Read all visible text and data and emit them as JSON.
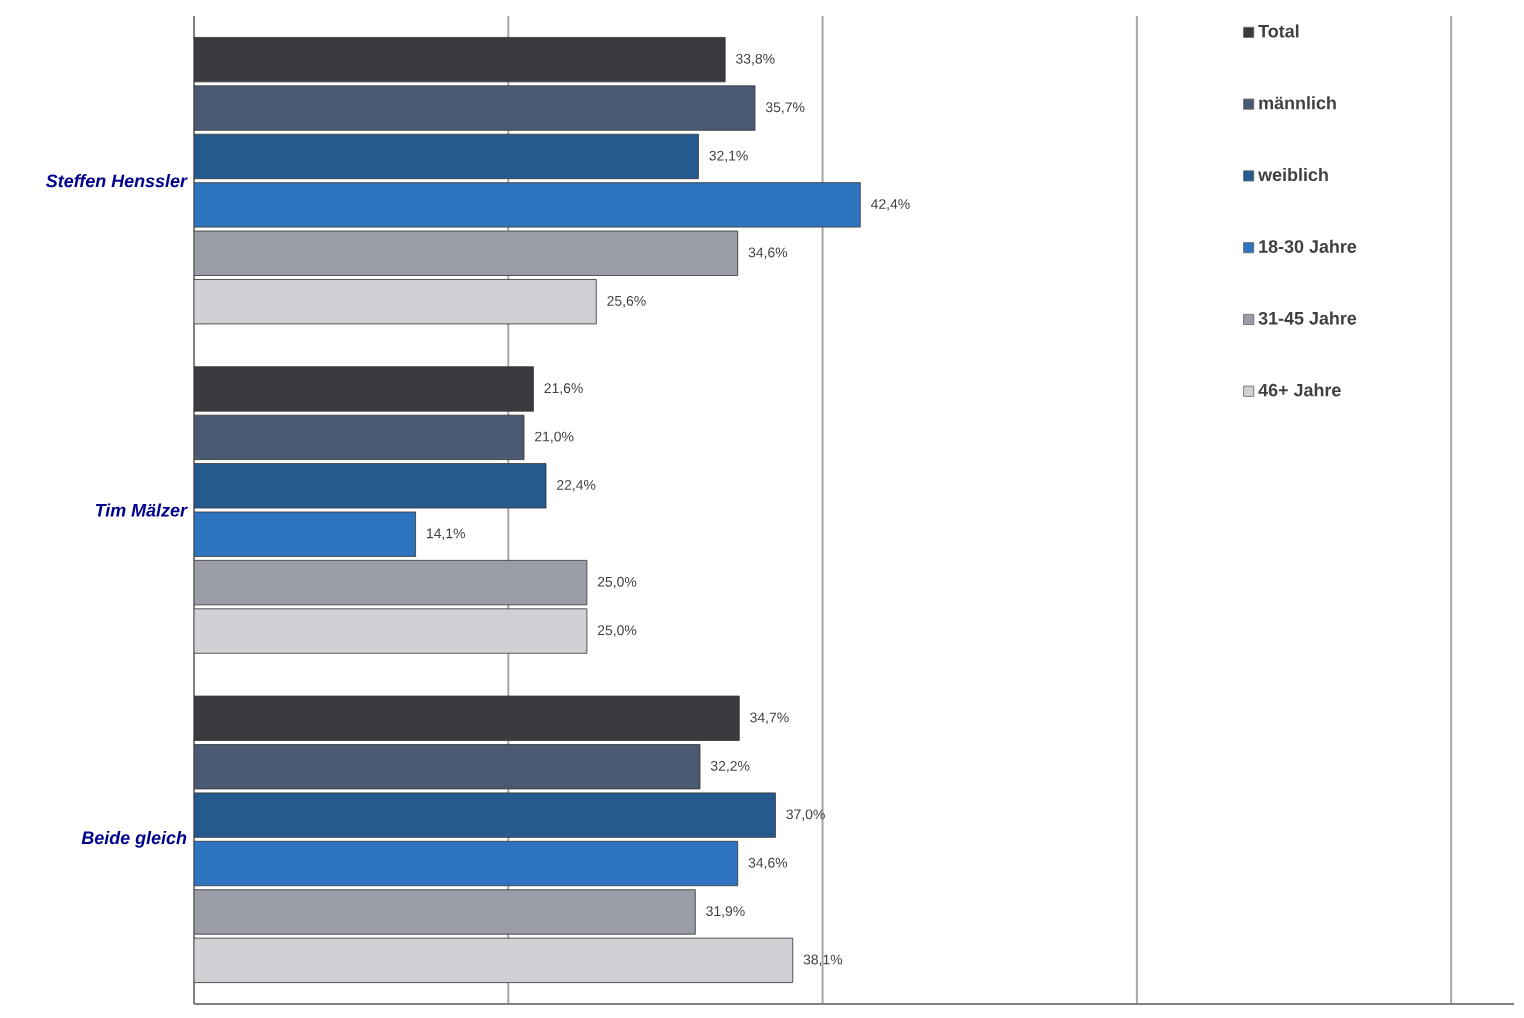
{
  "chart_data": {
    "type": "bar",
    "orientation": "horizontal",
    "categories": [
      "Steffen Henssler",
      "Tim Mälzer",
      "Beide gleich"
    ],
    "series": [
      {
        "name": "Total",
        "color": "#3a3b3f",
        "values": [
          33.8,
          21.6,
          34.7
        ],
        "value_labels": [
          "33,8%",
          "21,6%",
          "34,7%"
        ]
      },
      {
        "name": "männlich",
        "color": "#4a5a72",
        "values": [
          35.7,
          21.0,
          32.2
        ],
        "value_labels": [
          "35,7%",
          "21,0%",
          "32,2%"
        ]
      },
      {
        "name": "weiblich",
        "color": "#245a8e",
        "values": [
          32.1,
          22.4,
          37.0
        ],
        "value_labels": [
          "32,1%",
          "22,4%",
          "37,0%"
        ]
      },
      {
        "name": "18-30 Jahre",
        "color": "#2f74bf",
        "values": [
          42.4,
          14.1,
          34.6
        ],
        "value_labels": [
          "42,4%",
          "14,1%",
          "34,6%"
        ]
      },
      {
        "name": "31-45 Jahre",
        "color": "#9a9ca6",
        "values": [
          34.6,
          25.0,
          31.9
        ],
        "value_labels": [
          "34,6%",
          "25,0%",
          "31,9%"
        ]
      },
      {
        "name": "46+ Jahre",
        "color": "#d0d1d5",
        "values": [
          25.6,
          25.0,
          38.1
        ],
        "value_labels": [
          "25,6%",
          "25,0%",
          "38,1%"
        ]
      }
    ],
    "xlim": [
      0,
      84
    ],
    "xticks": [
      {
        "value": 0,
        "label": null
      },
      {
        "value": 20,
        "label": null
      },
      {
        "value": 40,
        "label": null
      },
      {
        "value": 60,
        "label": null
      },
      {
        "value": 80,
        "label": null
      }
    ],
    "tick_labels": "y",
    "grid": "x",
    "legend": "top right"
  }
}
